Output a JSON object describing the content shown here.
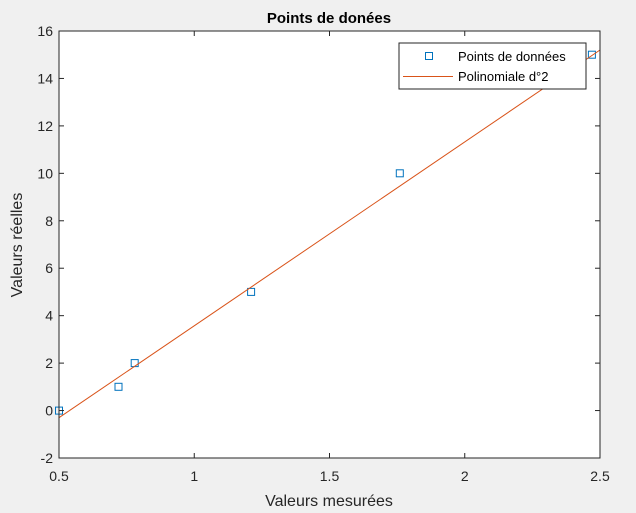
{
  "chart_data": {
    "type": "scatter",
    "title": "Points de donées",
    "xlabel": "Valeurs mesurées",
    "ylabel": "Valeurs réelles",
    "xlim": [
      0.5,
      2.5
    ],
    "ylim": [
      -2,
      16
    ],
    "xticks": [
      0.5,
      1,
      1.5,
      2,
      2.5
    ],
    "xtick_labels": [
      "0.5",
      "1",
      "1.5",
      "2",
      "2.5"
    ],
    "yticks": [
      -2,
      0,
      2,
      4,
      6,
      8,
      10,
      12,
      14,
      16
    ],
    "ytick_labels": [
      "-2",
      "0",
      "2",
      "4",
      "6",
      "8",
      "10",
      "12",
      "14",
      "16"
    ],
    "grid": false,
    "legend_position": "top-right",
    "series": [
      {
        "name": "Points de données",
        "kind": "markers",
        "marker": "square",
        "color": "#0072BD",
        "x": [
          0.5,
          0.72,
          0.78,
          1.21,
          1.76,
          2.47
        ],
        "y": [
          0,
          1,
          2,
          5,
          10,
          15
        ]
      },
      {
        "name": "Polinomiale d°2",
        "kind": "line",
        "color": "#D95319",
        "x": [
          0.5,
          2.5
        ],
        "y": [
          -0.3,
          15.2
        ]
      }
    ]
  }
}
